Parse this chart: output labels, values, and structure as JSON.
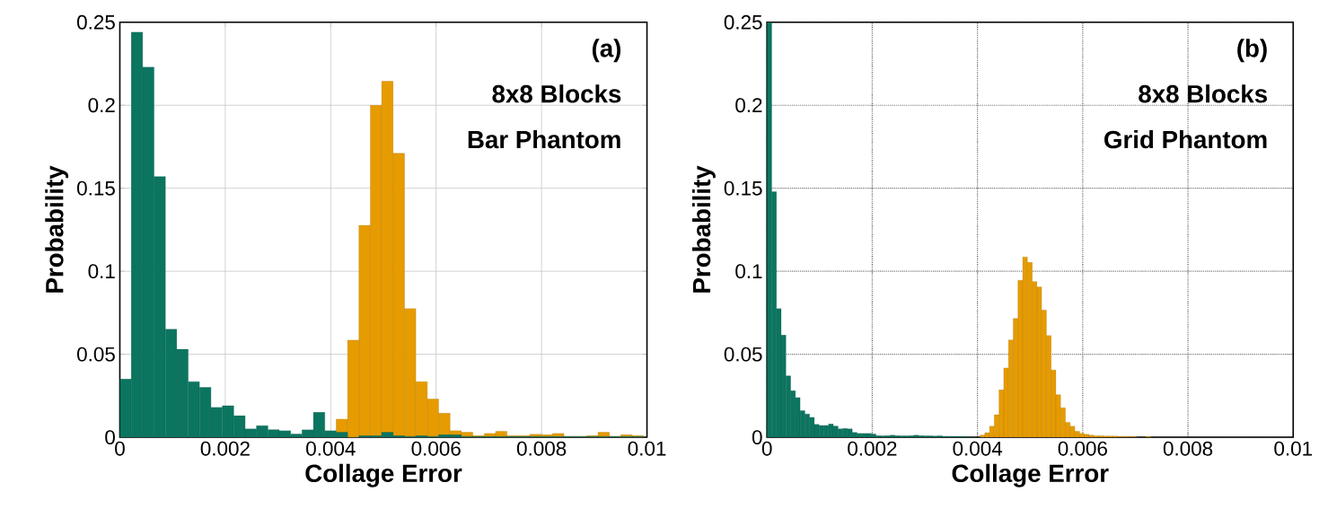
{
  "chart_data": [
    {
      "type": "histogram",
      "xlabel": "Collage Error",
      "ylabel": "Probability",
      "annotations": [
        "(a)",
        "8x8 Blocks",
        "Bar Phantom"
      ],
      "bins": [
        0,
        0.000216,
        0.000432,
        0.000648,
        0.000864,
        0.00108,
        0.001296,
        0.001512,
        0.001728,
        0.001944,
        0.00216,
        0.002376,
        0.002592,
        0.002808,
        0.003024,
        0.00324,
        0.003456,
        0.003672,
        0.003888,
        0.004104,
        0.00432,
        0.004536,
        0.004752,
        0.004968,
        0.005184,
        0.0054,
        0.005616,
        0.005832,
        0.006048,
        0.006264,
        0.00648,
        0.006696,
        0.006912,
        0.007128,
        0.007344,
        0.00756,
        0.007776,
        0.007992,
        0.008208,
        0.008424,
        0.00864,
        0.008856,
        0.009072,
        0.009288,
        0.009504,
        0.00972,
        0.009936
      ],
      "series": [
        {
          "color": "#e69b00",
          "values": [
            null,
            null,
            null,
            null,
            null,
            null,
            null,
            null,
            null,
            null,
            null,
            null,
            null,
            null,
            null,
            null,
            null,
            null,
            null,
            0.011,
            0.0585,
            0.1276,
            0.2,
            0.2144,
            0.171,
            0.0775,
            0.0335,
            0.023,
            0.0145,
            0.004,
            0.003,
            0.001,
            0.0023,
            0.0036,
            0.001,
            0.001,
            0.0018,
            0.0015,
            0.0023,
            0.0005,
            0.0005,
            0.001,
            0.003,
            0.0005,
            0.0015,
            0.001
          ]
        },
        {
          "color": "#0b7560",
          "values": [
            0.035,
            0.244,
            0.223,
            0.157,
            0.065,
            0.053,
            0.0335,
            0.03,
            0.018,
            0.019,
            0.013,
            0.005,
            0.007,
            0.0046,
            0.004,
            0.002,
            0.0045,
            0.015,
            0.004,
            0.003,
            0,
            0.001,
            0.001,
            0.003,
            0.001,
            0.0005,
            0.001,
            0.0005,
            0.0015,
            0.0015,
            0.0005,
            0.0005,
            0.0005,
            0.0005,
            0.0005,
            0.0005,
            0.0005,
            0.0005,
            0.0005,
            0.0005,
            0.0005,
            0.0005,
            0.0005,
            0.0005,
            0.0005,
            0.0005
          ]
        }
      ],
      "xlim": [
        0,
        0.01
      ],
      "ylim": [
        0,
        0.25
      ],
      "xticks": [
        0,
        0.002,
        0.004,
        0.006,
        0.008,
        0.01
      ],
      "yticks": [
        0,
        0.05,
        0.1,
        0.15,
        0.2,
        0.25
      ],
      "grid": true
    },
    {
      "type": "histogram",
      "xlabel": "Collage Error",
      "ylabel": "Probability",
      "annotations": [
        "(b)",
        "8x8 Blocks",
        "Grid Phantom"
      ],
      "bins": [
        0,
        9e-05,
        0.00018,
        0.00027,
        0.00036,
        0.00045,
        0.00054,
        0.00063,
        0.00072,
        0.00081,
        0.0009,
        0.00099,
        0.00108,
        0.00117,
        0.00126,
        0.00135,
        0.00144,
        0.00153,
        0.00162,
        0.00171,
        0.0018,
        0.00189,
        0.00198,
        0.00207,
        0.00216,
        0.00225,
        0.00234,
        0.00243,
        0.00252,
        0.00261,
        0.0027,
        0.00279,
        0.00288,
        0.00297,
        0.00306,
        0.00315,
        0.00324,
        0.00333,
        0.00342,
        0.00351,
        0.0036,
        0.00369,
        0.00378,
        0.00387,
        0.00396,
        0.00405,
        0.00414,
        0.00423,
        0.00432,
        0.00441,
        0.0045,
        0.00459,
        0.00468,
        0.00477,
        0.00486,
        0.00495,
        0.00504,
        0.00513,
        0.00522,
        0.00531,
        0.0054,
        0.00549,
        0.00558,
        0.00567,
        0.00576,
        0.00585,
        0.00594,
        0.00603,
        0.00612,
        0.00621,
        0.0063,
        0.00639,
        0.00648,
        0.00657,
        0.00666,
        0.00675,
        0.00684,
        0.00693,
        0.00702,
        0.00711,
        0.0072,
        0.00729
      ],
      "series": [
        {
          "color": "#e69b00",
          "values": [
            null,
            null,
            null,
            null,
            null,
            null,
            null,
            null,
            null,
            null,
            null,
            null,
            null,
            null,
            null,
            null,
            null,
            null,
            null,
            null,
            null,
            null,
            null,
            null,
            null,
            null,
            null,
            null,
            null,
            null,
            null,
            null,
            null,
            null,
            null,
            null,
            null,
            null,
            null,
            null,
            null,
            null,
            null,
            null,
            null,
            0.0013,
            0.0027,
            0.0067,
            0.0135,
            0.0285,
            0.0418,
            0.0586,
            0.0715,
            0.0946,
            0.1086,
            0.1054,
            0.0937,
            0.0906,
            0.0766,
            0.0613,
            0.0405,
            0.0256,
            0.0177,
            0.009,
            0.0067,
            0.0036,
            0.0023,
            0.0018,
            0.0012,
            0.0009,
            0.0009,
            0.0007,
            0.0007,
            0.0007,
            0.0005,
            0.0005,
            0.0004,
            0.0004,
            null,
            null,
            0.0005
          ]
        },
        {
          "color": "#0b7560",
          "values": [
            0.25,
            0.148,
            0.0775,
            0.0615,
            0.037,
            0.028,
            0.024,
            0.016,
            0.014,
            0.012,
            0.0077,
            0.0071,
            0.0071,
            0.008,
            0.0068,
            0.005,
            0.0053,
            0.005,
            0.0029,
            0.0023,
            0.0023,
            0.0023,
            0.002,
            0.001,
            0.0008,
            0.001,
            0.0012,
            0.001,
            0.0008,
            0.0008,
            0.001,
            0.0012,
            0.001,
            0.0008,
            0.0008,
            0.0007,
            0.0008,
            0.0006,
            0.0006,
            0.0005,
            0.0005,
            0.0004,
            0.0004,
            null,
            null,
            null,
            null,
            null,
            null,
            null,
            null,
            null,
            null,
            null,
            null,
            null,
            null,
            null,
            null,
            null,
            null,
            null,
            null,
            null,
            null,
            null,
            null,
            null,
            null,
            null,
            null,
            null,
            null,
            null,
            null,
            null,
            null,
            null,
            null,
            null,
            null
          ]
        }
      ],
      "xlim": [
        0,
        0.01
      ],
      "ylim": [
        0,
        0.25
      ],
      "xticks": [
        0,
        0.002,
        0.004,
        0.006,
        0.008,
        0.01
      ],
      "yticks": [
        0,
        0.05,
        0.1,
        0.15,
        0.2,
        0.25
      ],
      "grid": true
    }
  ]
}
